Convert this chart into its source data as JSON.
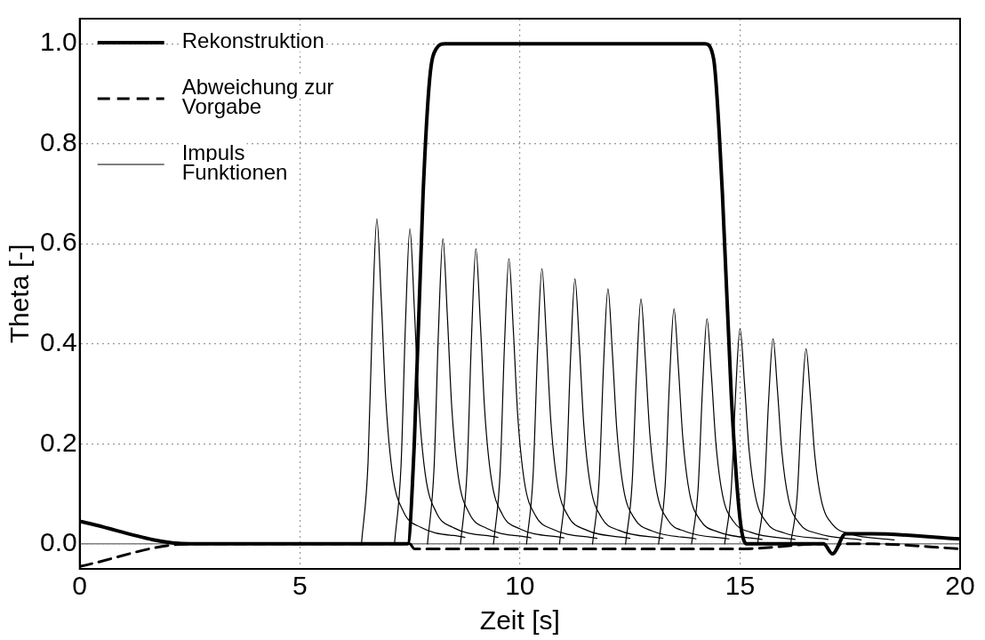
{
  "chart_data": {
    "type": "line",
    "xlabel": "Zeit [s]",
    "ylabel": "Theta [-]",
    "xlim": [
      0,
      20
    ],
    "xticks": [
      0,
      5,
      10,
      15,
      20
    ],
    "ylim": [
      -0.05,
      1.05
    ],
    "yticks": [
      {
        "value": 0,
        "label": "0.0"
      },
      {
        "value": 0.2,
        "label": "0.2"
      },
      {
        "value": 0.4,
        "label": "0.4"
      },
      {
        "value": 0.6,
        "label": "0.6"
      },
      {
        "value": 0.8,
        "label": "0.8"
      },
      {
        "value": 1,
        "label": "1.0"
      }
    ],
    "grid": true,
    "legend": "top left",
    "marker": "none",
    "ref_lines": [
      {
        "axis": "y",
        "value": 0,
        "color": "#808080"
      }
    ],
    "series": [
      {
        "name": "Rekonstruktion",
        "color": "#000000",
        "line_style": "solid",
        "x": [
          0,
          2.5,
          7.45,
          7.6,
          7.8,
          7.95,
          8.1,
          8.3,
          14.2,
          14.4,
          14.6,
          14.8,
          15.0,
          15.15,
          16.9,
          17.1,
          17.4,
          18,
          20
        ],
        "values": [
          0.045,
          0,
          0,
          0.2,
          0.7,
          0.93,
          0.99,
          1.0,
          1.0,
          0.97,
          0.7,
          0.3,
          0.05,
          0,
          0,
          -0.02,
          0.02,
          0.02,
          0.01
        ]
      },
      {
        "name": "Abweichung zur Vorgabe",
        "color": "#000000",
        "line_style": "dashed",
        "x": [
          0,
          2.5,
          7.5,
          7.6,
          15,
          16.9,
          17.1,
          17.3,
          18,
          20
        ],
        "values": [
          -0.045,
          0,
          0,
          -0.01,
          -0.01,
          0,
          -0.02,
          0,
          0,
          -0.01
        ]
      },
      {
        "name": "Impuls Funktionen",
        "color": "#000000",
        "line_style": "solid",
        "x": [
          6.4,
          6.55,
          6.65,
          6.75,
          6.85,
          6.95,
          7.1,
          7.35,
          7.75,
          8.75
        ],
        "values": [
          0,
          0.163,
          0.455,
          0.65,
          0.488,
          0.293,
          0.143,
          0.065,
          0.033,
          0.013
        ]
      },
      {
        "color": "#000000",
        "line_style": "solid",
        "x": [
          7.15,
          7.3,
          7.4,
          7.5,
          7.6,
          7.7,
          7.85,
          8.1,
          8.5,
          9.5
        ],
        "values": [
          0,
          0.158,
          0.441,
          0.63,
          0.473,
          0.284,
          0.139,
          0.063,
          0.032,
          0.013
        ]
      },
      {
        "color": "#000000",
        "line_style": "solid",
        "x": [
          7.9,
          8.05,
          8.15,
          8.25,
          8.35,
          8.45,
          8.6,
          8.85,
          9.25,
          10.25
        ],
        "values": [
          0,
          0.153,
          0.427,
          0.61,
          0.458,
          0.275,
          0.134,
          0.061,
          0.031,
          0.012
        ]
      },
      {
        "color": "#000000",
        "line_style": "solid",
        "x": [
          8.65,
          8.8,
          8.9,
          9.0,
          9.1,
          9.2,
          9.35,
          9.6,
          10.0,
          11.0
        ],
        "values": [
          0,
          0.148,
          0.413,
          0.59,
          0.443,
          0.266,
          0.13,
          0.059,
          0.03,
          0.012
        ]
      },
      {
        "color": "#000000",
        "line_style": "solid",
        "x": [
          9.4,
          9.55,
          9.65,
          9.75,
          9.85,
          9.95,
          10.1,
          10.35,
          10.75,
          11.75
        ],
        "values": [
          0,
          0.143,
          0.399,
          0.57,
          0.428,
          0.257,
          0.125,
          0.057,
          0.029,
          0.011
        ]
      },
      {
        "color": "#000000",
        "line_style": "solid",
        "x": [
          10.15,
          10.3,
          10.4,
          10.5,
          10.6,
          10.7,
          10.85,
          11.1,
          11.5,
          12.5
        ],
        "values": [
          0,
          0.138,
          0.385,
          0.55,
          0.413,
          0.248,
          0.121,
          0.055,
          0.028,
          0.011
        ]
      },
      {
        "color": "#000000",
        "line_style": "solid",
        "x": [
          10.9,
          11.05,
          11.15,
          11.25,
          11.35,
          11.45,
          11.6,
          11.85,
          12.25,
          13.25
        ],
        "values": [
          0,
          0.133,
          0.371,
          0.53,
          0.398,
          0.239,
          0.117,
          0.053,
          0.027,
          0.011
        ]
      },
      {
        "color": "#000000",
        "line_style": "solid",
        "x": [
          11.65,
          11.8,
          11.9,
          12.0,
          12.1,
          12.2,
          12.35,
          12.6,
          13.0,
          14.0
        ],
        "values": [
          0,
          0.128,
          0.357,
          0.51,
          0.383,
          0.23,
          0.112,
          0.051,
          0.026,
          0.01
        ]
      },
      {
        "color": "#000000",
        "line_style": "solid",
        "x": [
          12.4,
          12.55,
          12.65,
          12.75,
          12.85,
          12.95,
          13.1,
          13.35,
          13.75,
          14.75
        ],
        "values": [
          0,
          0.123,
          0.343,
          0.49,
          0.368,
          0.221,
          0.108,
          0.049,
          0.025,
          0.01
        ]
      },
      {
        "color": "#000000",
        "line_style": "solid",
        "x": [
          13.15,
          13.3,
          13.4,
          13.5,
          13.6,
          13.7,
          13.85,
          14.1,
          14.5,
          15.5
        ],
        "values": [
          0,
          0.118,
          0.329,
          0.47,
          0.353,
          0.212,
          0.103,
          0.047,
          0.024,
          0.009
        ]
      },
      {
        "color": "#000000",
        "line_style": "solid",
        "x": [
          13.9,
          14.05,
          14.15,
          14.25,
          14.35,
          14.45,
          14.6,
          14.85,
          15.25,
          16.25
        ],
        "values": [
          0,
          0.113,
          0.315,
          0.45,
          0.338,
          0.203,
          0.099,
          0.045,
          0.023,
          0.009
        ]
      },
      {
        "color": "#000000",
        "line_style": "solid",
        "x": [
          14.65,
          14.8,
          14.9,
          15.0,
          15.1,
          15.2,
          15.35,
          15.6,
          16.0,
          17.0
        ],
        "values": [
          0,
          0.108,
          0.301,
          0.43,
          0.323,
          0.194,
          0.095,
          0.043,
          0.022,
          0.009
        ]
      },
      {
        "color": "#000000",
        "line_style": "solid",
        "x": [
          15.4,
          15.55,
          15.65,
          15.75,
          15.85,
          15.95,
          16.1,
          16.35,
          16.75,
          17.75
        ],
        "values": [
          0,
          0.103,
          0.287,
          0.41,
          0.308,
          0.185,
          0.09,
          0.041,
          0.021,
          0.008
        ]
      },
      {
        "color": "#000000",
        "line_style": "solid",
        "x": [
          16.15,
          16.3,
          16.4,
          16.5,
          16.6,
          16.7,
          16.85,
          17.1,
          17.5,
          18.5
        ],
        "values": [
          0,
          0.098,
          0.273,
          0.39,
          0.293,
          0.176,
          0.086,
          0.039,
          0.02,
          0.008
        ]
      }
    ]
  }
}
